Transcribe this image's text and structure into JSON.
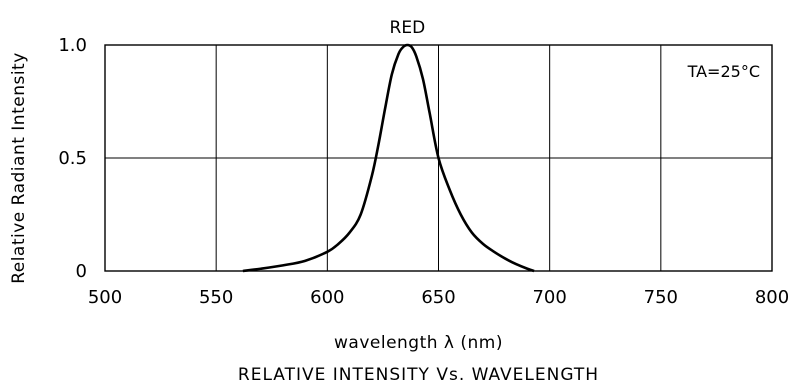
{
  "chart_data": {
    "type": "line",
    "title": "RELATIVE INTENSITY Vs. WAVELENGTH",
    "xlabel": "wavelength λ  (nm)",
    "ylabel": "Relative Radiant Intensity",
    "xlim": [
      500,
      800
    ],
    "ylim": [
      0,
      1.0
    ],
    "x_ticks": [
      "500",
      "550",
      "600",
      "650",
      "700",
      "750",
      "800"
    ],
    "y_ticks": [
      "0",
      "0.5",
      "1.0"
    ],
    "grid": true,
    "annotation": "TA=25°C",
    "series": [
      {
        "name": "RED",
        "x": [
          562,
          570,
          580,
          590,
          600,
          605,
          610,
          615,
          620,
          623,
          626,
          629,
          632,
          634,
          636,
          638,
          640,
          643,
          646,
          650,
          655,
          660,
          665,
          670,
          675,
          680,
          685,
          690,
          693
        ],
        "y": [
          0.0,
          0.01,
          0.025,
          0.045,
          0.085,
          0.12,
          0.17,
          0.25,
          0.42,
          0.56,
          0.72,
          0.87,
          0.96,
          0.99,
          1.0,
          0.99,
          0.95,
          0.85,
          0.7,
          0.5,
          0.36,
          0.25,
          0.17,
          0.12,
          0.085,
          0.055,
          0.03,
          0.01,
          0.0
        ]
      }
    ]
  }
}
